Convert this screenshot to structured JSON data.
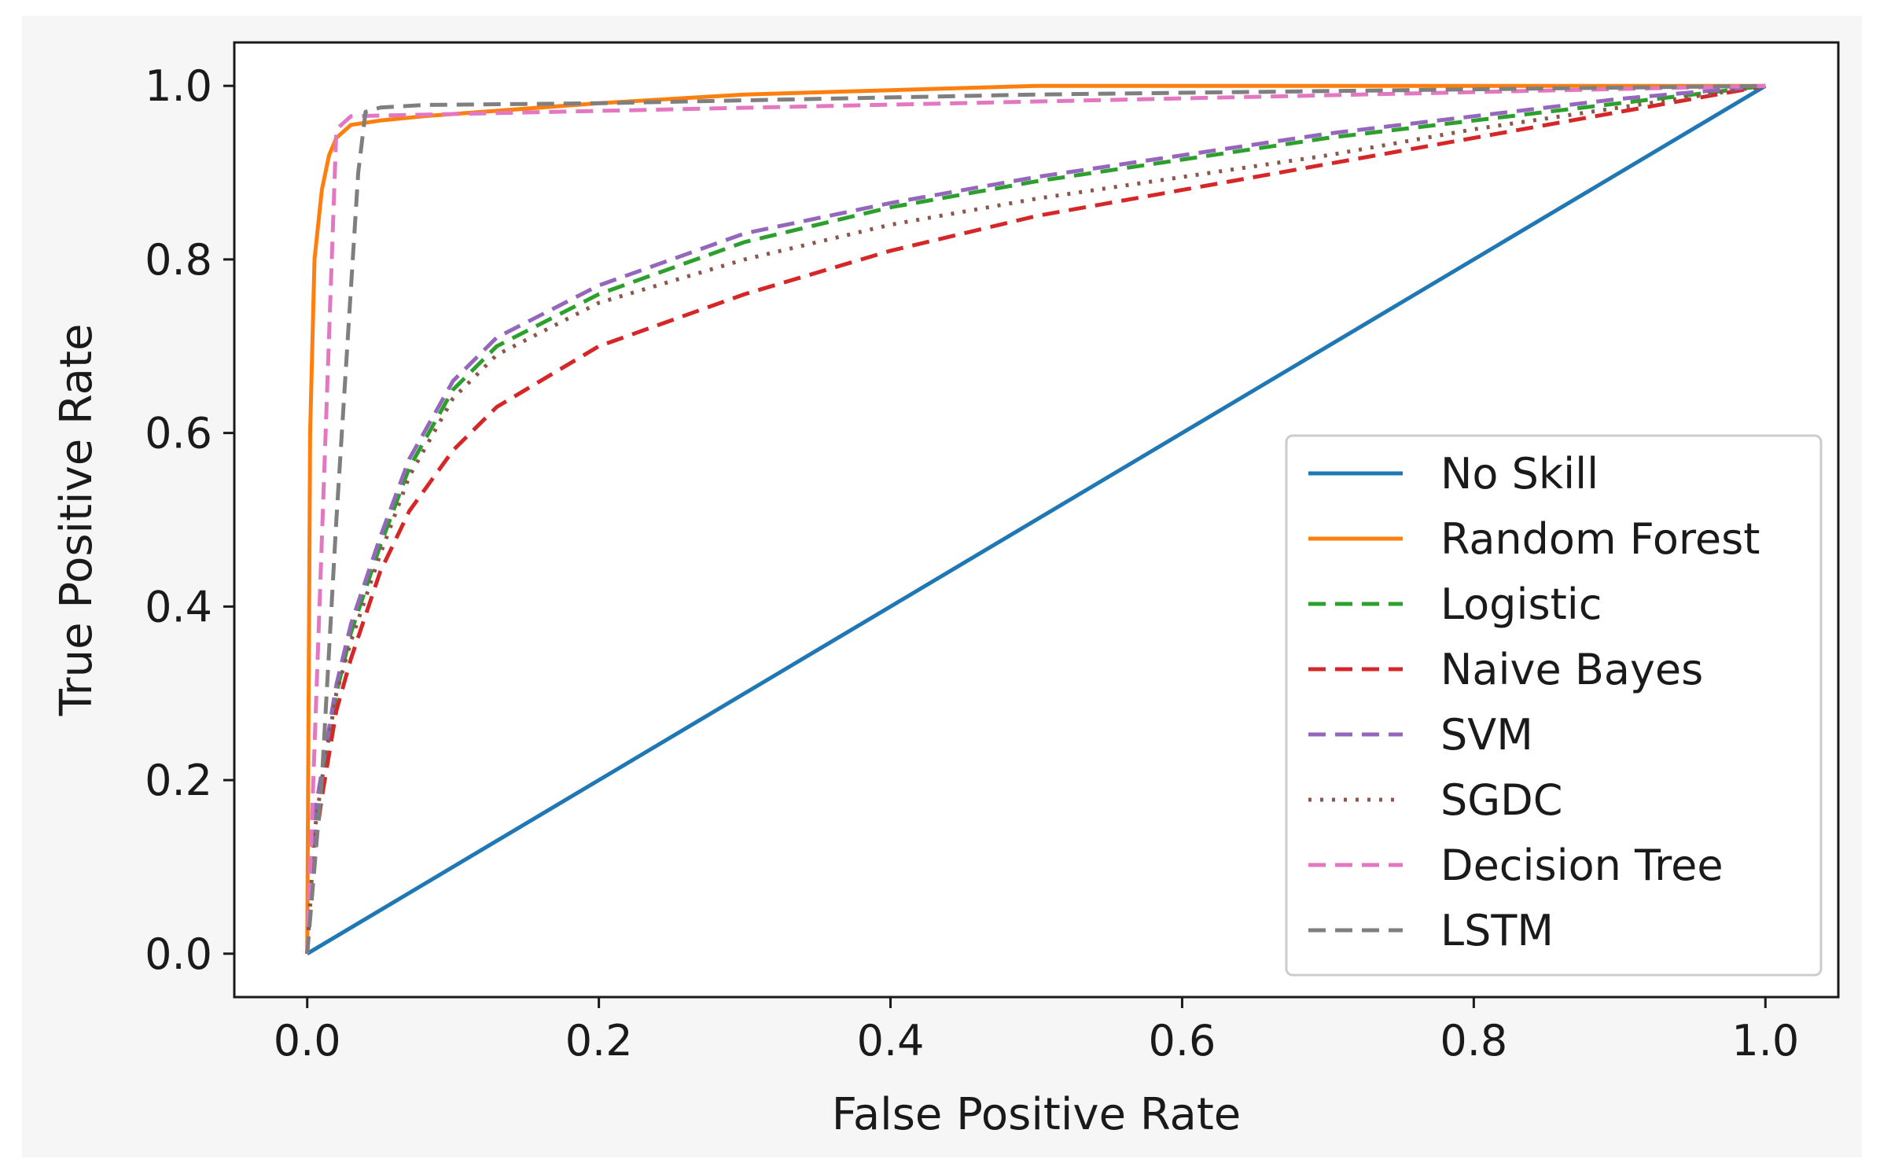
{
  "chart_data": {
    "type": "line",
    "title": "",
    "xlabel": "False Positive Rate",
    "ylabel": "True Positive Rate",
    "xlim": [
      -0.05,
      1.05
    ],
    "ylim": [
      -0.05,
      1.05
    ],
    "xticks": [
      0.0,
      0.2,
      0.4,
      0.6,
      0.8,
      1.0
    ],
    "yticks": [
      0.0,
      0.2,
      0.4,
      0.6,
      0.8,
      1.0
    ],
    "xtick_labels": [
      "0.0",
      "0.2",
      "0.4",
      "0.6",
      "0.8",
      "1.0"
    ],
    "ytick_labels": [
      "0.0",
      "0.2",
      "0.4",
      "0.6",
      "0.8",
      "1.0"
    ],
    "grid": false,
    "legend_position": "lower-right",
    "series": [
      {
        "name": "No Skill",
        "color": "#1f77b4",
        "style": "solid",
        "x": [
          0,
          1
        ],
        "y": [
          0,
          1
        ]
      },
      {
        "name": "Random Forest",
        "color": "#ff7f0e",
        "style": "solid",
        "x": [
          0,
          0.002,
          0.005,
          0.01,
          0.015,
          0.02,
          0.03,
          0.05,
          0.08,
          0.12,
          0.2,
          0.3,
          0.5,
          0.7,
          0.85,
          1.0
        ],
        "y": [
          0,
          0.6,
          0.8,
          0.88,
          0.92,
          0.94,
          0.955,
          0.96,
          0.965,
          0.97,
          0.98,
          0.99,
          1.0,
          1.0,
          1.0,
          1.0
        ]
      },
      {
        "name": "Logistic",
        "color": "#2ca02c",
        "style": "dashed",
        "x": [
          0,
          0.005,
          0.01,
          0.02,
          0.03,
          0.05,
          0.07,
          0.1,
          0.13,
          0.2,
          0.3,
          0.4,
          0.5,
          0.6,
          0.7,
          0.8,
          0.9,
          1.0
        ],
        "y": [
          0,
          0.15,
          0.2,
          0.3,
          0.37,
          0.47,
          0.56,
          0.65,
          0.7,
          0.76,
          0.82,
          0.86,
          0.89,
          0.915,
          0.94,
          0.96,
          0.98,
          1.0
        ]
      },
      {
        "name": "Naive Bayes",
        "color": "#d62728",
        "style": "dashed",
        "x": [
          0,
          0.005,
          0.01,
          0.02,
          0.03,
          0.05,
          0.07,
          0.1,
          0.13,
          0.2,
          0.3,
          0.4,
          0.5,
          0.6,
          0.7,
          0.8,
          0.9,
          1.0
        ],
        "y": [
          0,
          0.12,
          0.18,
          0.28,
          0.34,
          0.44,
          0.51,
          0.58,
          0.63,
          0.7,
          0.76,
          0.81,
          0.85,
          0.88,
          0.91,
          0.94,
          0.97,
          1.0
        ]
      },
      {
        "name": "SVM",
        "color": "#9467bd",
        "style": "dashed",
        "x": [
          0,
          0.005,
          0.01,
          0.02,
          0.03,
          0.05,
          0.07,
          0.1,
          0.13,
          0.2,
          0.3,
          0.4,
          0.5,
          0.6,
          0.7,
          0.8,
          0.9,
          1.0
        ],
        "y": [
          0,
          0.16,
          0.21,
          0.31,
          0.38,
          0.48,
          0.57,
          0.66,
          0.71,
          0.77,
          0.83,
          0.865,
          0.895,
          0.92,
          0.945,
          0.965,
          0.985,
          1.0
        ]
      },
      {
        "name": "SGDC",
        "color": "#8c564b",
        "style": "dotted",
        "x": [
          0,
          0.005,
          0.01,
          0.02,
          0.03,
          0.05,
          0.07,
          0.1,
          0.13,
          0.2,
          0.3,
          0.4,
          0.5,
          0.6,
          0.7,
          0.8,
          0.9,
          1.0
        ],
        "y": [
          0,
          0.14,
          0.2,
          0.3,
          0.36,
          0.46,
          0.55,
          0.64,
          0.69,
          0.75,
          0.8,
          0.84,
          0.87,
          0.895,
          0.92,
          0.95,
          0.975,
          1.0
        ]
      },
      {
        "name": "Decision Tree",
        "color": "#e377c2",
        "style": "dashed",
        "x": [
          0,
          0.02,
          0.03,
          1.0
        ],
        "y": [
          0,
          0.95,
          0.965,
          1.0
        ]
      },
      {
        "name": "LSTM",
        "color": "#7f7f7f",
        "style": "dashed",
        "x": [
          0,
          0.01,
          0.02,
          0.035,
          0.04,
          0.05,
          0.08,
          0.2,
          0.5,
          1.0
        ],
        "y": [
          0,
          0.2,
          0.5,
          0.9,
          0.97,
          0.975,
          0.978,
          0.98,
          0.99,
          1.0
        ]
      }
    ]
  }
}
